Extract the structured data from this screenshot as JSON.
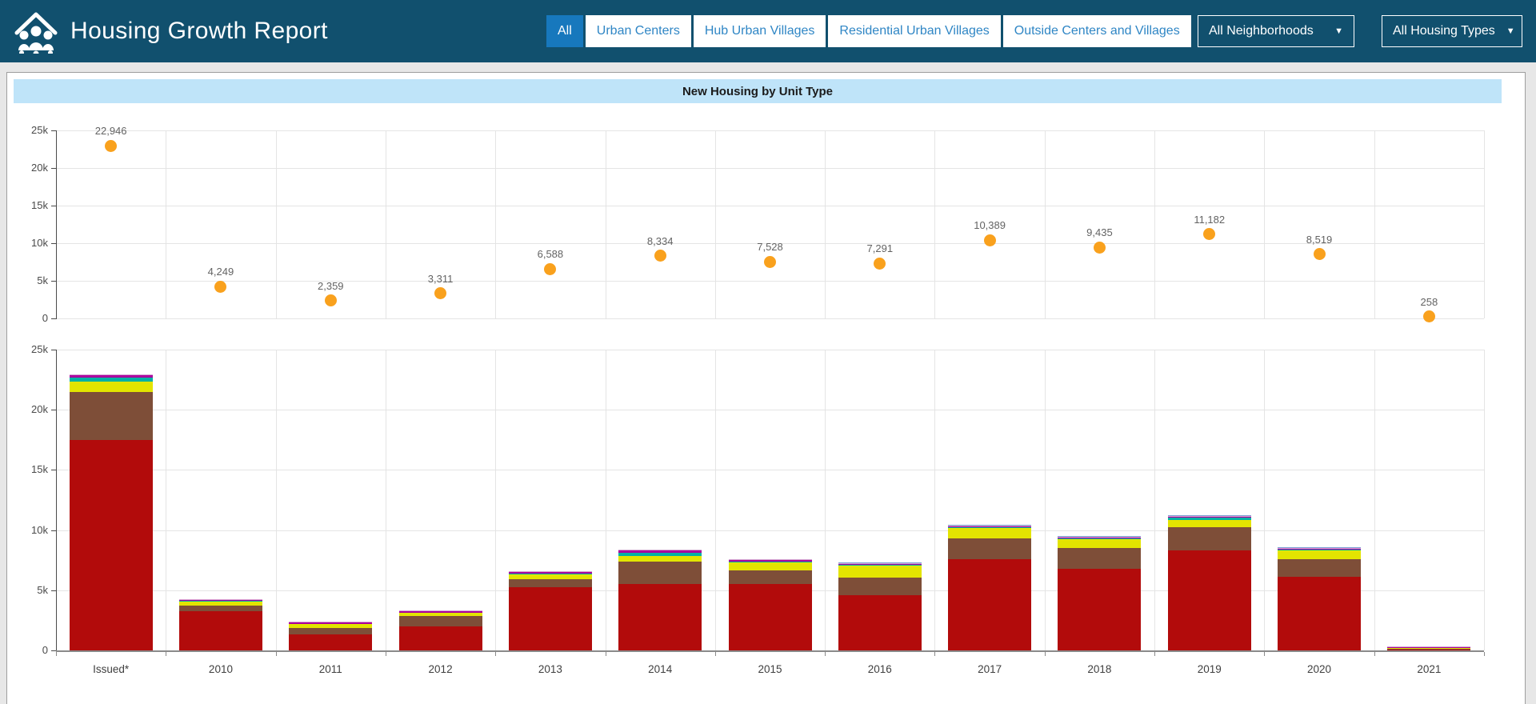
{
  "header": {
    "title": "Housing Growth Report",
    "bg_color": "#11506e",
    "active_filter_color": "#1778bd",
    "filter_text_color": "#2f86c5",
    "filters": [
      {
        "label": "All",
        "active": true
      },
      {
        "label": "Urban Centers",
        "active": false
      },
      {
        "label": "Hub Urban Villages",
        "active": false
      },
      {
        "label": "Residential Urban Villages",
        "active": false
      },
      {
        "label": "Outside Centers and Villages",
        "active": false
      }
    ],
    "neighborhoods_dropdown": {
      "value": "All Neighborhoods",
      "icon": "chevron-down"
    },
    "housing_types_dropdown": {
      "value": "All Housing Types",
      "icon": "chevron-down"
    }
  },
  "chart": {
    "banner_title": "New Housing by Unit Type",
    "banner_bg": "#bfe4f9"
  },
  "chart_data": {
    "type": "combo",
    "title": "New Housing by Unit Type",
    "categories": [
      "Issued*",
      "2010",
      "2011",
      "2012",
      "2013",
      "2014",
      "2015",
      "2016",
      "2017",
      "2018",
      "2019",
      "2020",
      "2021"
    ],
    "ylim": [
      0,
      25000
    ],
    "ytick_values": [
      0,
      5000,
      10000,
      15000,
      20000,
      25000
    ],
    "ytick_labels": [
      "0",
      "5k",
      "10k",
      "15k",
      "20k",
      "25k"
    ],
    "grid": true,
    "legend": "none",
    "dot_plot": {
      "type": "scatter",
      "color": "#f9a11d",
      "values": [
        22946,
        4249,
        2359,
        3311,
        6588,
        8334,
        7528,
        7291,
        10389,
        9435,
        11182,
        8519,
        258
      ],
      "labels": [
        "22,946",
        "4,249",
        "2,359",
        "3,311",
        "6,588",
        "8,334",
        "7,528",
        "7,291",
        "10,389",
        "9,435",
        "11,182",
        "8,519",
        "258"
      ]
    },
    "stacked_bars": {
      "type": "bar",
      "series": [
        {
          "name": "dark-red",
          "color": "#b20b0b",
          "values": [
            17500,
            3250,
            1320,
            1990,
            5270,
            5500,
            5500,
            4600,
            7600,
            6800,
            8330,
            6130,
            60
          ]
        },
        {
          "name": "brown",
          "color": "#7e4e38",
          "values": [
            3950,
            460,
            530,
            860,
            630,
            1900,
            1170,
            1470,
            1730,
            1730,
            1940,
            1470,
            100
          ]
        },
        {
          "name": "yellow",
          "color": "#e3e400",
          "values": [
            900,
            340,
            340,
            260,
            430,
            470,
            660,
            1000,
            870,
            740,
            600,
            730,
            60
          ]
        },
        {
          "name": "teal",
          "color": "#00b1a5",
          "values": [
            300,
            40,
            30,
            40,
            60,
            230,
            40,
            40,
            40,
            40,
            200,
            40,
            0
          ]
        },
        {
          "name": "magenta",
          "color": "#ab019e",
          "values": [
            200,
            120,
            110,
            130,
            150,
            180,
            120,
            100,
            80,
            80,
            60,
            100,
            20
          ]
        },
        {
          "name": "plum",
          "color": "#d5a6d3",
          "values": [
            96,
            39,
            29,
            31,
            48,
            54,
            38,
            41,
            29,
            25,
            32,
            29,
            18
          ]
        },
        {
          "name": "periwinkle",
          "color": "#7b9fd4",
          "values": [
            0,
            0,
            0,
            0,
            0,
            0,
            0,
            40,
            40,
            20,
            20,
            20,
            0
          ]
        }
      ]
    }
  }
}
